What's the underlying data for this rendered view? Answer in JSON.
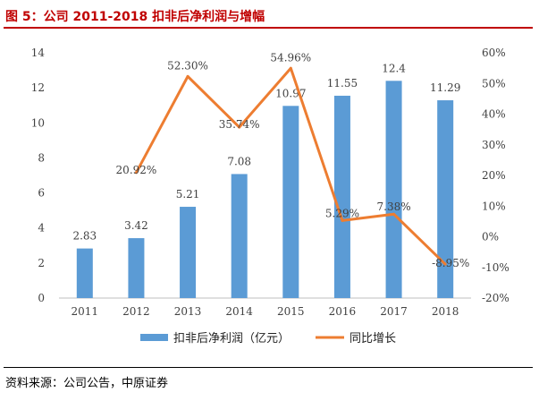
{
  "header": {
    "title": "图 5：公司 2011-2018 扣非后净利润与增幅"
  },
  "footer": {
    "source": "资料来源：公司公告，中原证券"
  },
  "colors": {
    "bar": "#5b9bd5",
    "line": "#ed7d31",
    "title": "#c00000"
  },
  "chart_data": {
    "type": "bar",
    "categories": [
      "2011",
      "2012",
      "2013",
      "2014",
      "2015",
      "2016",
      "2017",
      "2018"
    ],
    "series": [
      {
        "name": "扣非后净利润（亿元）",
        "type": "bar",
        "axis": "left",
        "values": [
          2.83,
          3.42,
          5.21,
          7.08,
          10.97,
          11.55,
          12.4,
          11.29
        ],
        "labels": [
          "2.83",
          "3.42",
          "5.21",
          "7.08",
          "10.97",
          "11.55",
          "12.4",
          "11.29"
        ]
      },
      {
        "name": "同比增长",
        "type": "line",
        "axis": "right",
        "values": [
          null,
          20.92,
          52.3,
          35.74,
          54.96,
          5.29,
          7.38,
          -8.95
        ],
        "labels": [
          "",
          "20.92%",
          "52.30%",
          "35.74%",
          "54.96%",
          "5.29%",
          "7.38%",
          "-8.95%"
        ]
      }
    ],
    "y_left": {
      "ylim": [
        0,
        14
      ],
      "ticks": [
        "0",
        "2",
        "4",
        "6",
        "8",
        "10",
        "12",
        "14"
      ]
    },
    "y_right": {
      "ylim": [
        -20,
        60
      ],
      "ticks": [
        "-20%",
        "-10%",
        "0%",
        "10%",
        "20%",
        "30%",
        "40%",
        "50%",
        "60%"
      ]
    },
    "grid": false,
    "legend": "bottom"
  }
}
